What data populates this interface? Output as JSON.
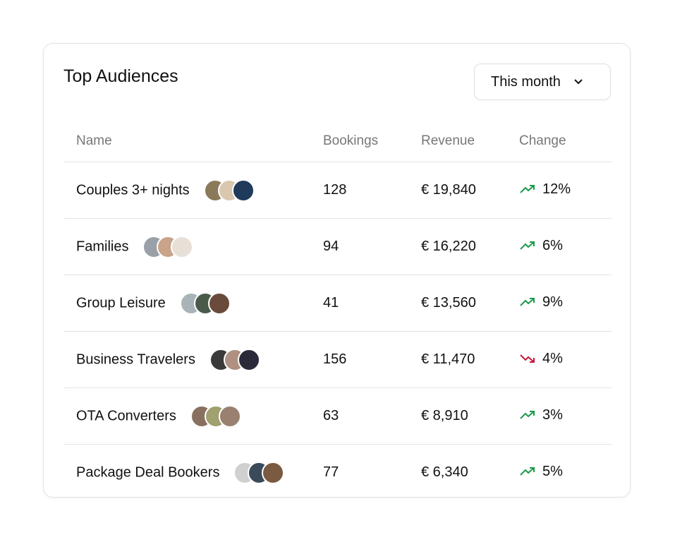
{
  "header": {
    "title": "Top Audiences",
    "filter": "This month"
  },
  "table": {
    "columns": [
      "Name",
      "Bookings",
      "Revenue",
      "Change"
    ],
    "rows": [
      [
        "Couples 3+ nights",
        "128",
        "€ 19,840",
        "12%"
      ],
      [
        "Families",
        "94",
        "€ 16,220",
        "6%"
      ],
      [
        "Group Leisure",
        "41",
        "€ 13,560",
        "9%"
      ],
      [
        "Business Travelers",
        "156",
        "€ 11,470",
        "4%"
      ],
      [
        "OTA Converters",
        "63",
        "€ 8,910",
        "3%"
      ],
      [
        "Package Deal Bookers",
        "77",
        "€ 6,340",
        "5%"
      ]
    ],
    "trends": [
      "up",
      "up",
      "up",
      "down",
      "up",
      "up"
    ]
  }
}
